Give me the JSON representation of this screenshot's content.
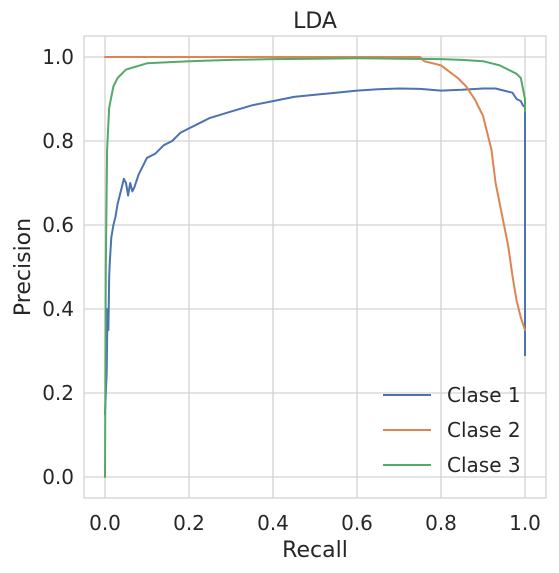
{
  "chart_data": {
    "type": "line",
    "title": "LDA",
    "xlabel": "Recall",
    "ylabel": "Precision",
    "xlim": [
      -0.05,
      1.05
    ],
    "ylim": [
      -0.05,
      1.05
    ],
    "xticks": [
      0.0,
      0.2,
      0.4,
      0.6,
      0.8,
      1.0
    ],
    "xtick_labels": [
      "0.0",
      "0.2",
      "0.4",
      "0.6",
      "0.8",
      "1.0"
    ],
    "yticks": [
      0.0,
      0.2,
      0.4,
      0.6,
      0.8,
      1.0
    ],
    "ytick_labels": [
      "0.0",
      "0.2",
      "0.4",
      "0.6",
      "0.8",
      "1.0"
    ],
    "grid": true,
    "legend_position": "lower-right",
    "series": [
      {
        "name": "Clase 1",
        "color": "#4c72b0",
        "x": [
          0.0,
          0.004,
          0.006,
          0.008,
          0.01,
          0.012,
          0.015,
          0.02,
          0.025,
          0.03,
          0.035,
          0.04,
          0.045,
          0.05,
          0.055,
          0.06,
          0.065,
          0.07,
          0.08,
          0.09,
          0.1,
          0.12,
          0.14,
          0.16,
          0.18,
          0.2,
          0.22,
          0.25,
          0.3,
          0.35,
          0.4,
          0.45,
          0.5,
          0.55,
          0.6,
          0.65,
          0.7,
          0.75,
          0.8,
          0.85,
          0.9,
          0.93,
          0.95,
          0.97,
          0.98,
          0.99,
          0.995,
          1.0,
          1.0
        ],
        "y": [
          0.15,
          0.25,
          0.4,
          0.35,
          0.48,
          0.52,
          0.57,
          0.6,
          0.62,
          0.65,
          0.67,
          0.69,
          0.71,
          0.7,
          0.67,
          0.7,
          0.68,
          0.69,
          0.72,
          0.74,
          0.76,
          0.77,
          0.79,
          0.8,
          0.82,
          0.83,
          0.84,
          0.855,
          0.87,
          0.885,
          0.895,
          0.905,
          0.91,
          0.915,
          0.92,
          0.923,
          0.925,
          0.924,
          0.92,
          0.922,
          0.925,
          0.925,
          0.92,
          0.915,
          0.9,
          0.895,
          0.885,
          0.88,
          0.29
        ]
      },
      {
        "name": "Clase 2",
        "color": "#dd8452",
        "x": [
          0.0,
          0.2,
          0.4,
          0.6,
          0.7,
          0.75,
          0.76,
          0.8,
          0.82,
          0.84,
          0.86,
          0.88,
          0.9,
          0.92,
          0.93,
          0.94,
          0.95,
          0.96,
          0.97,
          0.98,
          0.99,
          1.0
        ],
        "y": [
          1.0,
          1.0,
          1.0,
          1.0,
          1.0,
          1.0,
          0.99,
          0.98,
          0.965,
          0.95,
          0.93,
          0.9,
          0.86,
          0.78,
          0.7,
          0.65,
          0.6,
          0.55,
          0.48,
          0.42,
          0.38,
          0.35
        ]
      },
      {
        "name": "Clase 3",
        "color": "#55a868",
        "x": [
          0.0,
          0.002,
          0.005,
          0.01,
          0.02,
          0.03,
          0.05,
          0.1,
          0.2,
          0.3,
          0.4,
          0.5,
          0.6,
          0.7,
          0.8,
          0.85,
          0.9,
          0.94,
          0.96,
          0.98,
          0.99,
          1.0,
          1.0
        ],
        "y": [
          0.0,
          0.5,
          0.78,
          0.88,
          0.93,
          0.95,
          0.97,
          0.985,
          0.99,
          0.993,
          0.995,
          0.996,
          0.997,
          0.996,
          0.995,
          0.993,
          0.99,
          0.98,
          0.97,
          0.96,
          0.95,
          0.9,
          0.87
        ]
      }
    ]
  }
}
